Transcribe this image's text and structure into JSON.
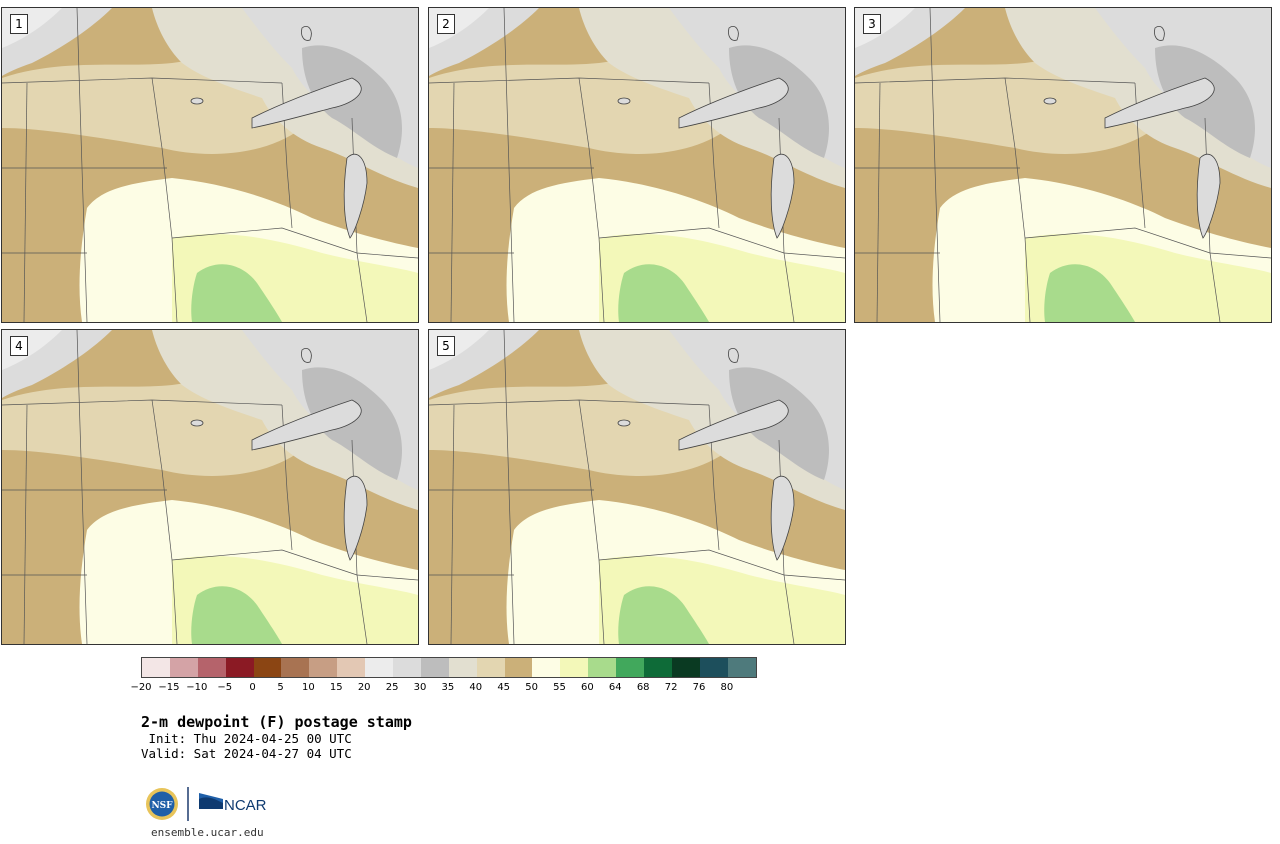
{
  "panels": [
    {
      "label": "1"
    },
    {
      "label": "2"
    },
    {
      "label": "3"
    },
    {
      "label": "4"
    },
    {
      "label": "5"
    }
  ],
  "colorbar": {
    "colors": [
      "#f3e6e6",
      "#d4a3a6",
      "#b5636b",
      "#8b1a24",
      "#8b4513",
      "#a87352",
      "#c79e84",
      "#e3c8b4",
      "#ececec",
      "#dcdcdc",
      "#bdbdbd",
      "#e2dfd0",
      "#e3d6b1",
      "#cbb079",
      "#fdfde5",
      "#f3f8b9",
      "#a8db8c",
      "#41a85c",
      "#0e6b38",
      "#0a3a22",
      "#1d4f5c",
      "#4e7a7c"
    ],
    "tick_labels": [
      "−20",
      "−15",
      "−10",
      "−5",
      "0",
      "5",
      "10",
      "15",
      "20",
      "25",
      "30",
      "35",
      "40",
      "45",
      "50",
      "55",
      "60",
      "64",
      "68",
      "72",
      "76",
      "80"
    ]
  },
  "title": "2-m dewpoint (F) postage stamp",
  "init": " Init: Thu 2024-04-25 00 UTC",
  "valid": "Valid: Sat 2024-04-27 04 UTC",
  "logos": {
    "nsf": "NSF",
    "ncar": "NCAR"
  },
  "site": "ensemble.ucar.edu"
}
